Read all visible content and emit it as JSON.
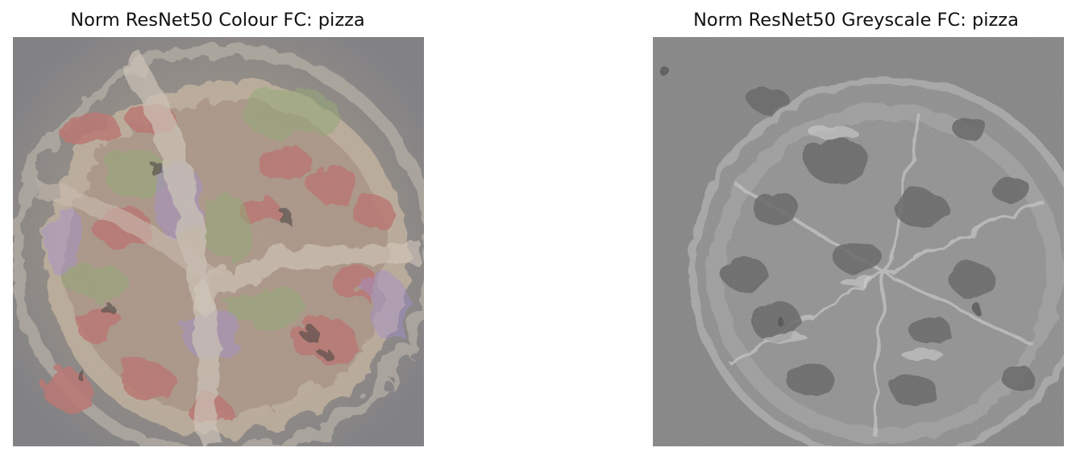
{
  "figure": {
    "panels": [
      {
        "title": "Norm ResNet50 Colour FC: pizza",
        "image_description": "feature visualization of pizza in colour",
        "palette": {
          "base": "#8f8a84",
          "crust": "#d9c7b1",
          "topping": "#b86a64",
          "green": "#8fa66e",
          "purple": "#9a84c8",
          "dark": "#3f3a36"
        }
      },
      {
        "title": "Norm ResNet50 Greyscale FC: pizza",
        "image_description": "feature visualization of pizza in greyscale",
        "palette": {
          "base": "#7e7e7e",
          "crust": "#b8b8b8",
          "topping": "#5b5b5b",
          "light": "#d7d7d7",
          "dark": "#3b3b3b"
        }
      }
    ]
  }
}
